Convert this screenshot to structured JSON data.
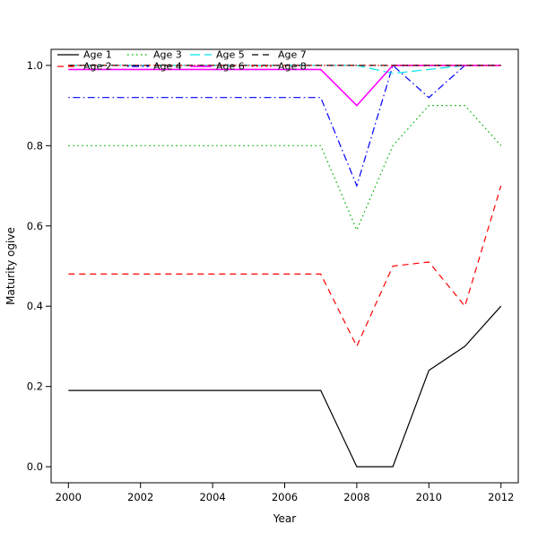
{
  "chart_data": {
    "type": "line",
    "title": "",
    "xlabel": "Year",
    "ylabel": "Maturity ogive",
    "xlim": [
      2000,
      2012
    ],
    "ylim": [
      0.0,
      1.0
    ],
    "grid": false,
    "legend_position": "top-left-inside, 4 columns x 2 rows",
    "x": [
      2000,
      2001,
      2002,
      2003,
      2004,
      2005,
      2006,
      2007,
      2008,
      2009,
      2010,
      2011,
      2012
    ],
    "x_tick_labels": [
      "2000",
      "2002",
      "2004",
      "2006",
      "2008",
      "2010",
      "2012"
    ],
    "x_tick_values": [
      2000,
      2002,
      2004,
      2006,
      2008,
      2010,
      2012
    ],
    "y_tick_labels": [
      "0.0",
      "0.2",
      "0.4",
      "0.6",
      "0.8",
      "1.0"
    ],
    "y_tick_values": [
      0.0,
      0.2,
      0.4,
      0.6,
      0.8,
      1.0
    ],
    "series": [
      {
        "name": "Age 1",
        "color": "#000000",
        "linestyle": "solid",
        "values": [
          0.19,
          0.19,
          0.19,
          0.19,
          0.19,
          0.19,
          0.19,
          0.19,
          0.0,
          0.0,
          0.24,
          0.3,
          0.4
        ]
      },
      {
        "name": "Age 2",
        "color": "#ff0000",
        "linestyle": "dashed",
        "values": [
          0.48,
          0.48,
          0.48,
          0.48,
          0.48,
          0.48,
          0.48,
          0.48,
          0.3,
          0.5,
          0.51,
          0.4,
          0.7
        ]
      },
      {
        "name": "Age 3",
        "color": "#00b200",
        "linestyle": "dotted",
        "values": [
          0.8,
          0.8,
          0.8,
          0.8,
          0.8,
          0.8,
          0.8,
          0.8,
          0.59,
          0.8,
          0.9,
          0.9,
          0.8
        ]
      },
      {
        "name": "Age 4",
        "color": "#0000ff",
        "linestyle": "dotdash",
        "values": [
          0.92,
          0.92,
          0.92,
          0.92,
          0.92,
          0.92,
          0.92,
          0.92,
          0.7,
          1.0,
          0.92,
          1.0,
          1.0
        ]
      },
      {
        "name": "Age 5",
        "color": "#00e5e5",
        "linestyle": "longdash",
        "values": [
          1.0,
          1.0,
          1.0,
          1.0,
          1.0,
          1.0,
          1.0,
          1.0,
          1.0,
          0.98,
          0.99,
          1.0,
          1.0
        ]
      },
      {
        "name": "Age 6",
        "color": "#ff00ff",
        "linestyle": "solid",
        "values": [
          0.99,
          0.99,
          0.99,
          0.99,
          0.99,
          0.99,
          0.99,
          0.99,
          0.9,
          1.0,
          1.0,
          1.0,
          1.0
        ]
      },
      {
        "name": "Age 7",
        "color": "#000000",
        "linestyle": "dashed",
        "values": [
          1.0,
          1.0,
          1.0,
          1.0,
          1.0,
          1.0,
          1.0,
          1.0,
          1.0,
          1.0,
          1.0,
          1.0,
          1.0
        ]
      },
      {
        "name": "Age 8",
        "color": "#ff0000",
        "linestyle": "dotted",
        "values": [
          1.0,
          1.0,
          1.0,
          1.0,
          1.0,
          1.0,
          1.0,
          1.0,
          1.0,
          1.0,
          1.0,
          1.0,
          1.0
        ]
      }
    ]
  }
}
